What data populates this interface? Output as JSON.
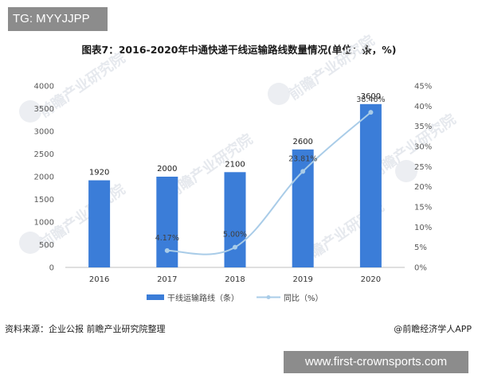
{
  "watermark_tag": "TG: MYYJJPP",
  "footer": {
    "source": "资料来源：企业公报 前瞻产业研究院整理",
    "credit": "@前瞻经济学人APP",
    "url_badge": "www.first-crownsports.com"
  },
  "colors": {
    "bar": "#3b7dd8",
    "line": "#a9cce8",
    "marker": "#a9cce8"
  },
  "chart_data": {
    "type": "bar",
    "title": "图表7：2016-2020年中通快递干线运输路线数量情况(单位：条，%)",
    "categories": [
      "2016",
      "2017",
      "2018",
      "2019",
      "2020"
    ],
    "series": [
      {
        "name": "干线运输路线（条）",
        "type": "bar",
        "values": [
          1920,
          2000,
          2100,
          2600,
          3600
        ],
        "labels": [
          "1920",
          "2000",
          "2100",
          "2600",
          "3600"
        ]
      },
      {
        "name": "同比（%）",
        "type": "line",
        "axis": "right",
        "values": [
          null,
          4.17,
          5.0,
          23.81,
          38.46
        ],
        "labels": [
          "",
          "4.17%",
          "5.00%",
          "23.81%",
          "38.46%"
        ]
      }
    ],
    "ylim": [
      0,
      4000
    ],
    "y_ticks": [
      "0",
      "500",
      "1000",
      "1500",
      "2000",
      "2500",
      "3000",
      "3500",
      "4000"
    ],
    "y2lim": [
      0,
      45
    ],
    "y2_ticks": [
      "0%",
      "5%",
      "10%",
      "15%",
      "20%",
      "25%",
      "30%",
      "35%",
      "40%",
      "45%"
    ],
    "grid": false,
    "legend_position": "bottom"
  }
}
